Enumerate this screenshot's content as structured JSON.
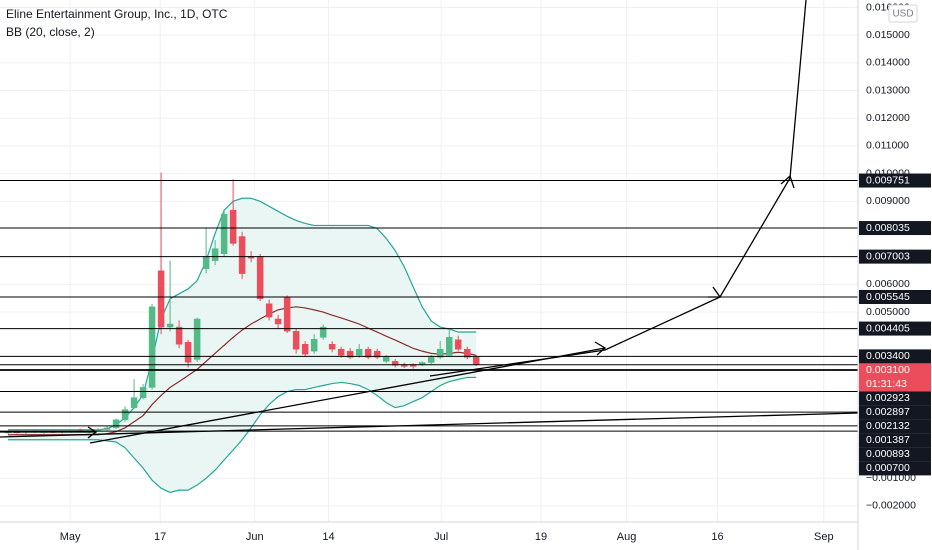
{
  "chart_data": {
    "type": "candlestick",
    "title": "Eline Entertainment Group, Inc., 1D, OTC",
    "indicator": "BB (20, close, 2)",
    "currency": "USD",
    "open": [
      0.00066,
      0.00068,
      0.00066,
      0.0007,
      0.00067,
      0.00069,
      0.00066,
      0.0007,
      0.00072,
      0.00068,
      0.00074,
      0.00076,
      0.00082,
      0.00111,
      0.00155,
      0.00191,
      0.00228,
      0.00649,
      0.00446,
      0.00446,
      0.00391,
      0.00329,
      0.00657,
      0.00686,
      0.00711,
      0.00868,
      0.00773,
      0.00701,
      0.00701,
      0.0053,
      0.00475,
      0.00555,
      0.00431,
      0.00384,
      0.00359,
      0.00409,
      0.00384,
      0.00366,
      0.00359,
      0.00344,
      0.00366,
      0.00359,
      0.00322,
      0.00322,
      0.00311,
      0.00311,
      0.00311,
      0.00318,
      0.00337,
      0.00344,
      0.004,
      0.00366,
      0.00337
    ],
    "high": [
      0.00072,
      0.00074,
      0.0007,
      0.00076,
      0.00073,
      0.00075,
      0.00072,
      0.00078,
      0.0008,
      0.00076,
      0.00082,
      0.00088,
      0.00115,
      0.0016,
      0.00257,
      0.0024,
      0.0053,
      0.01004,
      0.00686,
      0.0047,
      0.004,
      0.0048,
      0.00802,
      0.0076,
      0.0087,
      0.0098,
      0.0079,
      0.0072,
      0.0071,
      0.00545,
      0.0049,
      0.0056,
      0.0044,
      0.00395,
      0.0042,
      0.00455,
      0.00395,
      0.00375,
      0.0037,
      0.00385,
      0.00375,
      0.00368,
      0.00345,
      0.0033,
      0.00318,
      0.00315,
      0.00322,
      0.00345,
      0.00395,
      0.0044,
      0.00415,
      0.00375,
      0.00345
    ],
    "low": [
      0.0006,
      0.00062,
      0.0006,
      0.00064,
      0.00061,
      0.00063,
      0.00062,
      0.00064,
      0.00066,
      0.00062,
      0.00068,
      0.00072,
      0.00078,
      0.00104,
      0.0015,
      0.00185,
      0.0022,
      0.0042,
      0.0043,
      0.0037,
      0.003,
      0.0032,
      0.0064,
      0.0067,
      0.007,
      0.0074,
      0.0062,
      0.0068,
      0.0054,
      0.0047,
      0.0044,
      0.00425,
      0.0035,
      0.0034,
      0.0035,
      0.004,
      0.00355,
      0.00335,
      0.0033,
      0.00335,
      0.0033,
      0.0033,
      0.00315,
      0.003,
      0.00298,
      0.00296,
      0.00305,
      0.00312,
      0.0033,
      0.0034,
      0.0036,
      0.0033,
      0.00305
    ],
    "close": [
      0.00068,
      0.00066,
      0.0007,
      0.00067,
      0.00069,
      0.00066,
      0.0007,
      0.00072,
      0.00068,
      0.00074,
      0.00076,
      0.00082,
      0.00111,
      0.00148,
      0.00191,
      0.00228,
      0.00519,
      0.00446,
      0.00457,
      0.00384,
      0.00319,
      0.00475,
      0.00701,
      0.00729,
      0.00853,
      0.00748,
      0.00639,
      0.00695,
      0.00548,
      0.00482,
      0.00457,
      0.00431,
      0.00366,
      0.00348,
      0.00402,
      0.00446,
      0.00366,
      0.00344,
      0.00337,
      0.00366,
      0.00337,
      0.00337,
      0.00337,
      0.00308,
      0.00304,
      0.00304,
      0.00318,
      0.00337,
      0.00366,
      0.00409,
      0.00366,
      0.00337,
      0.0031
    ],
    "up_color": "#53b987",
    "down_color": "#eb4d5c",
    "bb_upper": [
      0.00075,
      0.00075,
      0.00075,
      0.00075,
      0.00075,
      0.00075,
      0.00075,
      0.00075,
      0.00075,
      0.00075,
      0.00075,
      0.00079,
      0.00093,
      0.00119,
      0.00155,
      0.00202,
      0.00329,
      0.00475,
      0.00548,
      0.00566,
      0.00584,
      0.00613,
      0.00686,
      0.00784,
      0.00868,
      0.009,
      0.00911,
      0.00911,
      0.009,
      0.00882,
      0.00864,
      0.00846,
      0.00831,
      0.0082,
      0.00813,
      0.00813,
      0.00813,
      0.00813,
      0.00813,
      0.00813,
      0.00813,
      0.00802,
      0.00766,
      0.00722,
      0.00664,
      0.00591,
      0.00519,
      0.00468,
      0.00446,
      0.00439,
      0.00428,
      0.00428,
      0.00428
    ],
    "bb_middle": [
      0.00057,
      0.00057,
      0.00057,
      0.00057,
      0.00057,
      0.00057,
      0.00057,
      0.00057,
      0.00057,
      0.00057,
      0.00057,
      0.00061,
      0.00068,
      0.00082,
      0.00104,
      0.00126,
      0.00166,
      0.00199,
      0.00228,
      0.00249,
      0.00271,
      0.00293,
      0.00322,
      0.00351,
      0.0038,
      0.00409,
      0.00435,
      0.00457,
      0.00475,
      0.00493,
      0.00508,
      0.00515,
      0.00519,
      0.00515,
      0.00508,
      0.005,
      0.00489,
      0.00479,
      0.00468,
      0.00457,
      0.00442,
      0.00428,
      0.00413,
      0.00399,
      0.00384,
      0.00369,
      0.00359,
      0.00351,
      0.00348,
      0.00351,
      0.00355,
      0.00351,
      0.00344
    ],
    "bb_lower": [
      0.00039,
      0.00039,
      0.00039,
      0.00039,
      0.00039,
      0.00039,
      0.00039,
      0.00039,
      0.00039,
      0.00039,
      0.00039,
      0.00035,
      0.00031,
      0.0001,
      -0.00027,
      -0.00063,
      -0.00107,
      -0.00136,
      -0.00151,
      -0.00143,
      -0.00143,
      -0.00125,
      -0.001,
      -0.00071,
      -0.00034,
      2e-05,
      0.00039,
      0.00082,
      0.00129,
      0.00166,
      0.00195,
      0.00213,
      0.0022,
      0.0022,
      0.00228,
      0.00235,
      0.00242,
      0.00246,
      0.00242,
      0.00235,
      0.0022,
      0.00199,
      0.00173,
      0.00155,
      0.00162,
      0.00177,
      0.00191,
      0.00213,
      0.00235,
      0.00249,
      0.00257,
      0.00264,
      0.00264
    ],
    "band_color": "#26a69a",
    "band_fill": "#e9f6f4",
    "basis_color": "#8b2d2d",
    "xlim": [
      -0.89,
      94.4
    ],
    "xticks": [
      {
        "value": 6.9,
        "label": "May"
      },
      {
        "value": 16.9,
        "label": "17"
      },
      {
        "value": 27.4,
        "label": "Jun"
      },
      {
        "value": 35.6,
        "label": "14"
      },
      {
        "value": 48.1,
        "label": "Jul"
      },
      {
        "value": 59.2,
        "label": "19"
      },
      {
        "value": 68.7,
        "label": "Aug"
      },
      {
        "value": 78.8,
        "label": "16"
      },
      {
        "value": 90.6,
        "label": "Sep"
      }
    ],
    "ylim": [
      -0.00258,
      0.01627
    ],
    "yticks": [
      {
        "value": 0.016,
        "label": "0.016000"
      },
      {
        "value": 0.015,
        "label": "0.015000"
      },
      {
        "value": 0.014,
        "label": "0.014000"
      },
      {
        "value": 0.013,
        "label": "0.013000"
      },
      {
        "value": 0.012,
        "label": "0.012000"
      },
      {
        "value": 0.011,
        "label": "0.011000"
      },
      {
        "value": 0.01,
        "label": "0.010000"
      },
      {
        "value": 0.009,
        "label": "0.009000"
      },
      {
        "value": 0.006,
        "label": "0.006000"
      },
      {
        "value": 0.005,
        "label": "0.005000"
      },
      {
        "value": -0.001,
        "label": "−0.001000"
      },
      {
        "value": -0.002,
        "label": "−0.002000"
      }
    ],
    "levels": [
      0.009751,
      0.008035,
      0.007003,
      0.005545,
      0.004405,
      0.0034,
      0.002923,
      0.002897,
      0.002132,
      0.001387,
      0.000893,
      0.0007
    ],
    "level_labels": [
      "0.009751",
      "0.008035",
      "0.007003",
      "0.005545",
      "0.004405",
      "0.003400",
      "0.002923",
      "0.002897",
      "0.002132",
      "0.001387",
      "0.000893",
      "0.000700"
    ],
    "last_price": 0.0031,
    "last_price_label": "0.003100",
    "countdown": "01:31:43",
    "last_color": "#eb4d5c",
    "grid": true
  }
}
